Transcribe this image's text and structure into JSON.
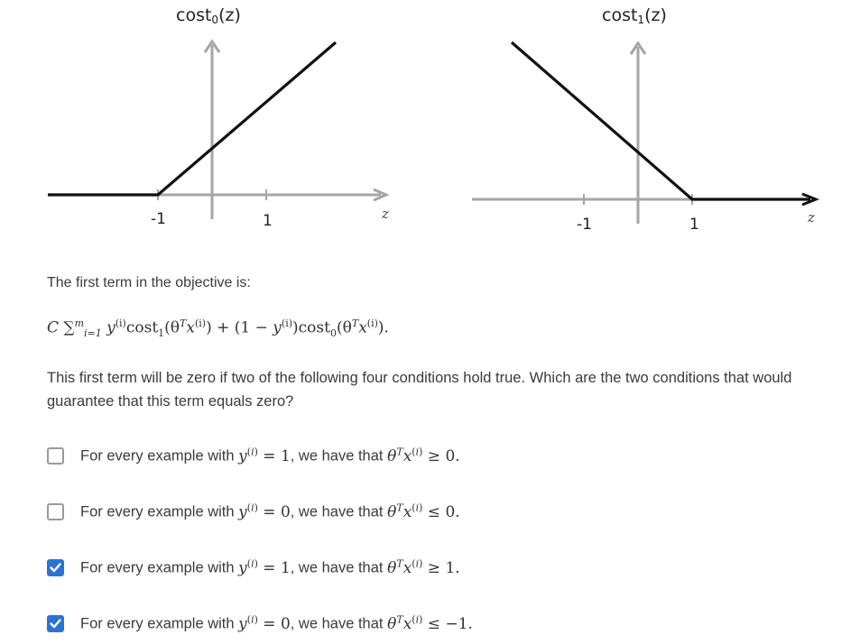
{
  "graphs": {
    "left": {
      "title_main": "cost",
      "title_sub": "0",
      "title_tail": "(z)",
      "tick_neg": "-1",
      "tick_pos": "1",
      "axis_label": "z"
    },
    "right": {
      "title_main": "cost",
      "title_sub": "1",
      "title_tail": "(z)",
      "tick_neg": "-1",
      "tick_pos": "1",
      "axis_label": "z"
    }
  },
  "prompt": "The first term in the objective is:",
  "formula": {
    "C": "C",
    "sum": "∑",
    "sum_sup": "m",
    "sum_sub": "i=1",
    "y": "y",
    "idx": "(i)",
    "cost1": "cost",
    "cost1_sub": "1",
    "arg_open": "(θ",
    "T": "T",
    "x": "x",
    "arg_close": ")",
    "plus": " + (1 − ",
    "paren_close": ")",
    "cost0": "cost",
    "cost0_sub": "0",
    "end": ")."
  },
  "question": "This first term will be zero if two of the following four conditions hold true. Which are the two conditions that would guarantee that this term equals zero?",
  "options": [
    {
      "prefix": "For every example with ",
      "y_val": " = 1",
      "mid": ", we have that ",
      "cond": " ≥ 0.",
      "checked": false
    },
    {
      "prefix": "For every example with ",
      "y_val": " = 0",
      "mid": ", we have that ",
      "cond": " ≤ 0.",
      "checked": false
    },
    {
      "prefix": "For every example with ",
      "y_val": " = 1",
      "mid": ", we have that ",
      "cond": " ≥ 1.",
      "checked": true
    },
    {
      "prefix": "For every example with ",
      "y_val": " = 0",
      "mid": ", we have that ",
      "cond": " ≤ −1.",
      "checked": true
    }
  ],
  "colors": {
    "axis": "#a6a6a6",
    "curve": "#111111",
    "check_blue": "#2b73d1"
  }
}
